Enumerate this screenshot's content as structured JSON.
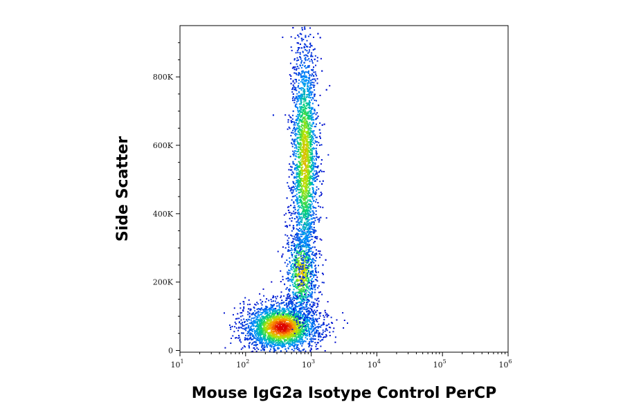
{
  "chart_data": {
    "type": "scatter",
    "title": "",
    "xlabel": "Mouse IgG2a Isotype Control PerCP",
    "ylabel": "Side Scatter",
    "x_scale": "log",
    "xlim": [
      10,
      1000000
    ],
    "ylim": [
      -5000,
      950000
    ],
    "x_ticks": [
      {
        "value": 10,
        "base": "10",
        "exp": "1"
      },
      {
        "value": 100,
        "base": "10",
        "exp": "2"
      },
      {
        "value": 1000,
        "base": "10",
        "exp": "3"
      },
      {
        "value": 10000,
        "base": "10",
        "exp": "4"
      },
      {
        "value": 100000,
        "base": "10",
        "exp": "5"
      },
      {
        "value": 1000000,
        "base": "10",
        "exp": "6"
      }
    ],
    "y_ticks": [
      {
        "value": 0,
        "label": "0"
      },
      {
        "value": 200000,
        "label": "200K"
      },
      {
        "value": 400000,
        "label": "400K"
      },
      {
        "value": 600000,
        "label": "600K"
      },
      {
        "value": 800000,
        "label": "800K"
      }
    ],
    "grid": false,
    "color_scale": "density (blue → green → yellow → red)",
    "populations": [
      {
        "label": "cluster",
        "x_center": 350,
        "y_center": 70000,
        "x_spread_log": 0.28,
        "y_spread": 35000,
        "count": 2600,
        "density": "high"
      },
      {
        "label": "cluster",
        "x_center": 700,
        "y_center": 230000,
        "x_spread_log": 0.12,
        "y_spread": 70000,
        "count": 900,
        "density": "medium"
      },
      {
        "label": "cluster",
        "x_center": 780,
        "y_center": 560000,
        "x_spread_log": 0.1,
        "y_spread": 170000,
        "count": 3200,
        "density": "medium"
      }
    ]
  }
}
